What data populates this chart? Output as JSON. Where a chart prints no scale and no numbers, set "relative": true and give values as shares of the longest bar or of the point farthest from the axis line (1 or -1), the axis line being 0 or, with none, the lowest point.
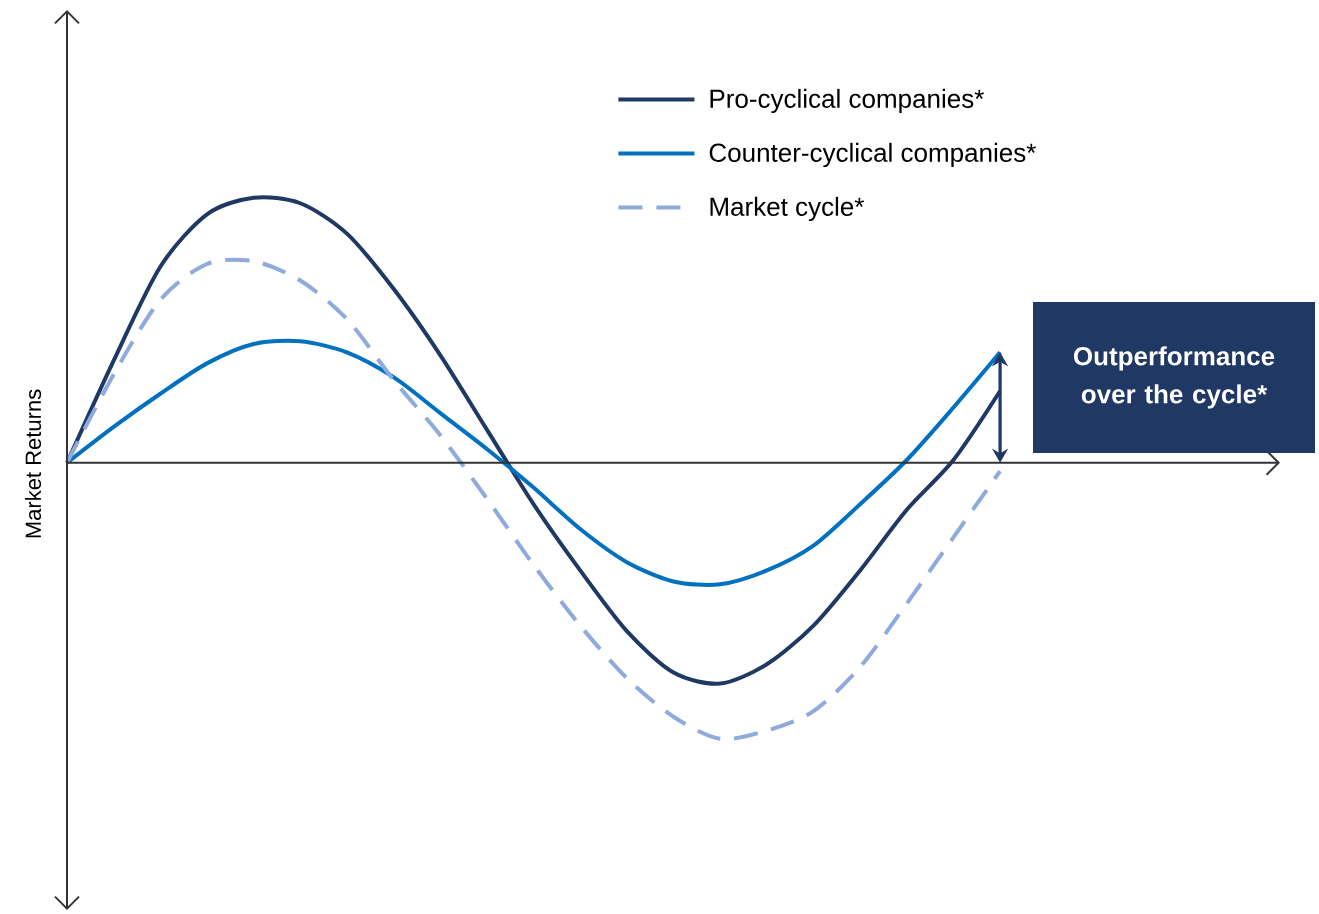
{
  "chart_data": {
    "type": "line",
    "relative": true,
    "ylabel": "Market Returns",
    "legend": "top right",
    "categories": [
      null,
      null,
      null,
      null,
      null,
      null,
      null,
      null,
      null,
      null,
      null,
      null,
      null,
      null,
      null,
      null,
      null,
      null,
      null,
      null,
      null,
      null,
      null,
      null,
      null,
      null,
      null
    ],
    "series": [
      {
        "name": "Pro-cyclical companies*",
        "color": "#1f3864",
        "line_style": "solid",
        "values": [
          0,
          0.37,
          0.71,
          0.9,
          0.96,
          0.94,
          0.83,
          0.63,
          0.39,
          0.12,
          -0.15,
          -0.39,
          -0.61,
          -0.76,
          -0.8,
          -0.73,
          -0.59,
          -0.39,
          -0.17,
          0.01,
          0.26,
          null,
          null,
          null,
          null,
          null,
          null
        ]
      },
      {
        "name": "Counter-cyclical companies*",
        "color": "#0070c0",
        "line_style": "solid",
        "values": [
          0,
          0.13,
          0.25,
          0.36,
          0.43,
          0.44,
          0.4,
          0.31,
          0.18,
          0.05,
          -0.09,
          -0.24,
          -0.36,
          -0.43,
          -0.44,
          -0.39,
          -0.3,
          -0.15,
          0.01,
          0.2,
          0.4,
          null,
          null,
          null,
          null,
          null,
          null
        ]
      },
      {
        "name": "Market cycle*",
        "color": "#8faadc",
        "line_style": "dashed",
        "values": [
          0,
          0.32,
          0.59,
          0.72,
          0.73,
          0.66,
          0.52,
          0.3,
          0.1,
          -0.13,
          -0.37,
          -0.59,
          -0.78,
          -0.92,
          -1.0,
          -0.97,
          -0.9,
          -0.74,
          -0.51,
          -0.27,
          -0.03,
          null,
          null,
          null,
          null,
          null,
          null
        ]
      }
    ],
    "annotations": [
      "Outperformance over the cycle*"
    ]
  }
}
